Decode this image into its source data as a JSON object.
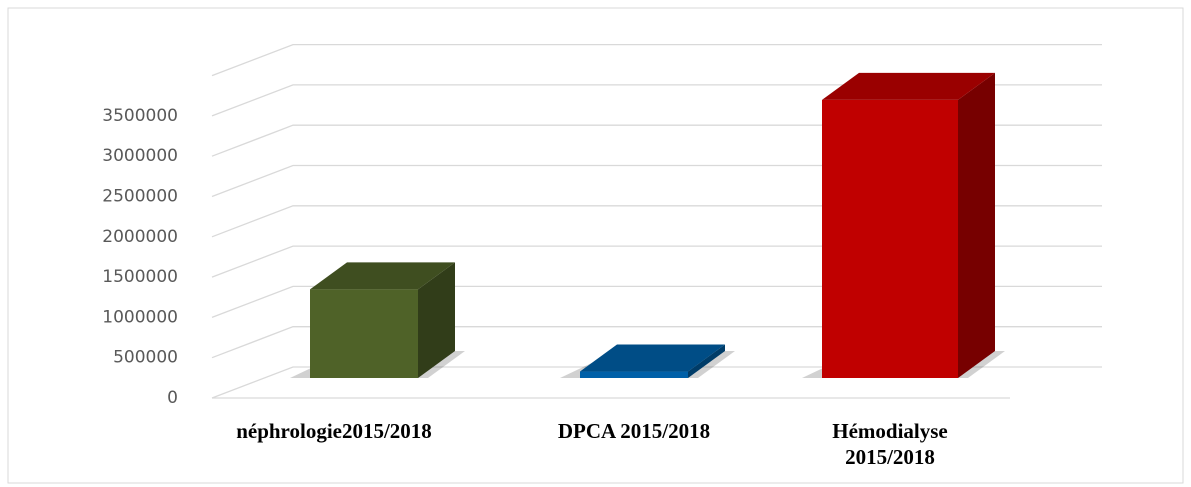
{
  "chart_data": {
    "type": "bar3d",
    "categories": [
      "néphrologie2015/2018",
      "DPCA 2015/2018",
      "Hémodialyse 2015/2018"
    ],
    "series": [
      {
        "colors": [
          "#4f6228",
          "#0060a8",
          "#c00000"
        ],
        "values": [
          1100000,
          80000,
          3450000
        ]
      }
    ],
    "ylim": [
      0,
      4000000
    ],
    "yticks": [
      0,
      500000,
      1000000,
      1500000,
      2000000,
      2500000,
      3000000,
      3500000
    ],
    "grid": true
  }
}
